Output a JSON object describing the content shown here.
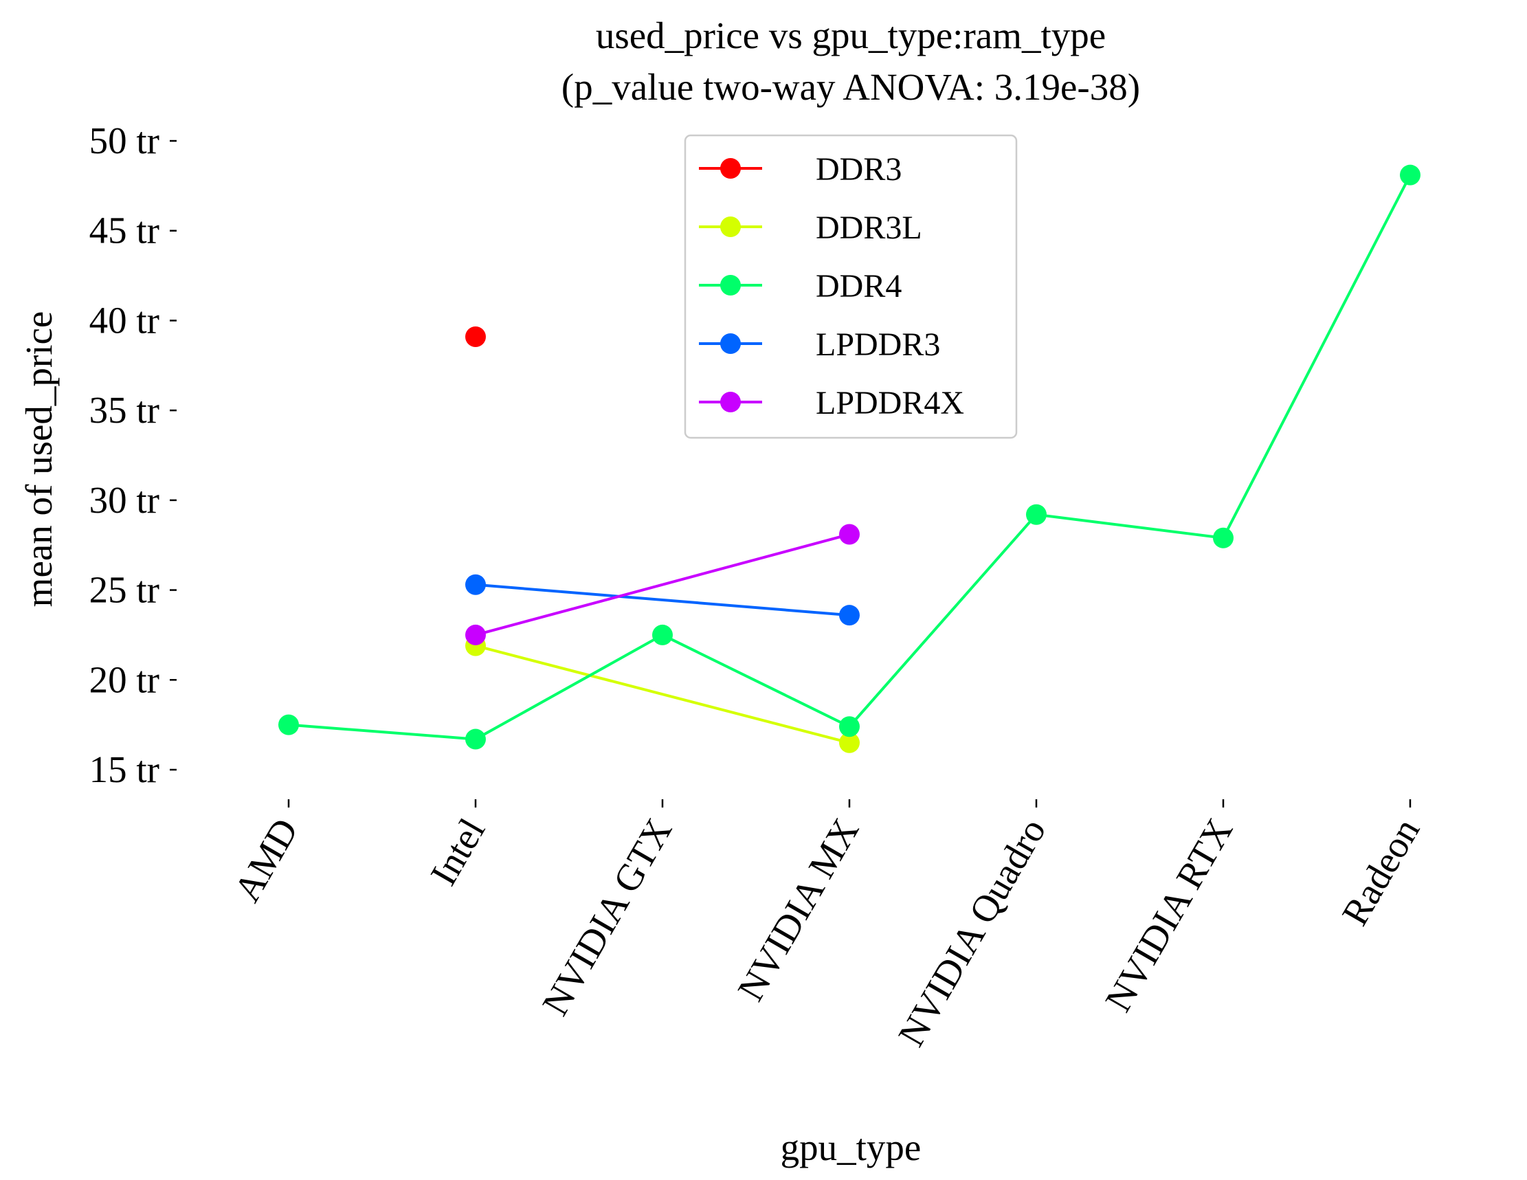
{
  "chart_data": {
    "type": "line",
    "title": "used_price vs gpu_type:ram_type",
    "subtitle": "(p_value two-way ANOVA: 3.19e-38)",
    "xlabel": "gpu_type",
    "ylabel": "mean of used_price",
    "categories": [
      "AMD",
      "Intel",
      "NVIDIA GTX",
      "NVIDIA MX",
      "NVIDIA Quadro",
      "NVIDIA RTX",
      "Radeon"
    ],
    "y_ticks": [
      15,
      20,
      25,
      30,
      35,
      40,
      45,
      50
    ],
    "y_tick_suffix": " tr",
    "ylim": [
      13.5,
      50.8
    ],
    "grid": false,
    "legend_position": "upper center",
    "series": [
      {
        "name": "DDR3",
        "color": "#ff0000",
        "values": [
          null,
          39.1,
          null,
          null,
          null,
          null,
          null
        ]
      },
      {
        "name": "DDR3L",
        "color": "#d4ff00",
        "values": [
          null,
          21.9,
          null,
          16.5,
          null,
          null,
          null
        ]
      },
      {
        "name": "DDR4",
        "color": "#00ff6a",
        "values": [
          17.5,
          16.7,
          22.5,
          17.4,
          29.2,
          27.9,
          48.1
        ]
      },
      {
        "name": "LPDDR3",
        "color": "#0064ff",
        "values": [
          null,
          25.3,
          null,
          23.6,
          null,
          null,
          null
        ]
      },
      {
        "name": "LPDDR4X",
        "color": "#c800ff",
        "values": [
          null,
          22.5,
          null,
          28.1,
          null,
          null,
          null
        ]
      }
    ]
  }
}
